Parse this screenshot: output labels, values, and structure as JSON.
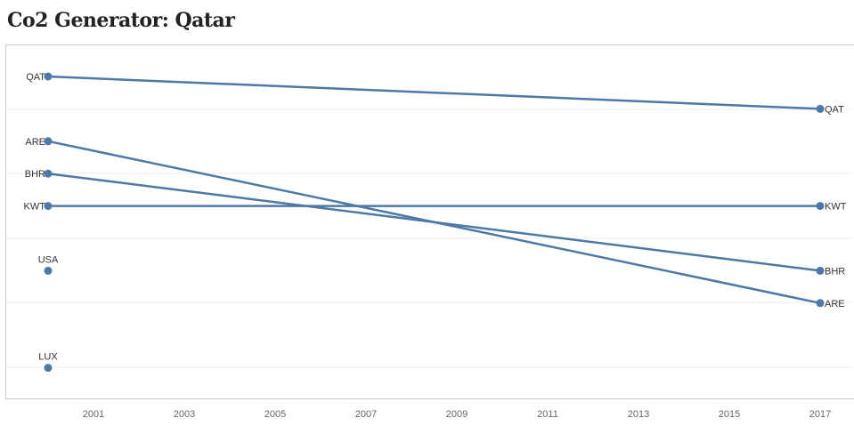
{
  "header": {
    "title": "Co2 Generator: Qatar"
  },
  "chart_data": {
    "type": "line",
    "title": "Co2 Generator: Qatar",
    "xlabel": "",
    "ylabel": "",
    "x_ticks": [
      "2001",
      "2003",
      "2005",
      "2007",
      "2009",
      "2011",
      "2013",
      "2015",
      "2017"
    ],
    "xlim": [
      2000,
      2017
    ],
    "y_axis": "rank (hidden)",
    "ylim": [
      1,
      10
    ],
    "grid": true,
    "series": [
      {
        "name": "QAT",
        "points": [
          [
            2000,
            1
          ],
          [
            2017,
            2
          ]
        ]
      },
      {
        "name": "ARE",
        "points": [
          [
            2000,
            3
          ],
          [
            2017,
            8
          ]
        ]
      },
      {
        "name": "BHR",
        "points": [
          [
            2000,
            4
          ],
          [
            2017,
            7
          ]
        ]
      },
      {
        "name": "KWT",
        "points": [
          [
            2000,
            5
          ],
          [
            2017,
            5
          ]
        ]
      },
      {
        "name": "USA",
        "points": [
          [
            2000,
            7
          ]
        ]
      },
      {
        "name": "LUX",
        "points": [
          [
            2000,
            10
          ]
        ]
      }
    ],
    "colors": {
      "line": "#4e79a7",
      "grid": "#ececec"
    }
  }
}
